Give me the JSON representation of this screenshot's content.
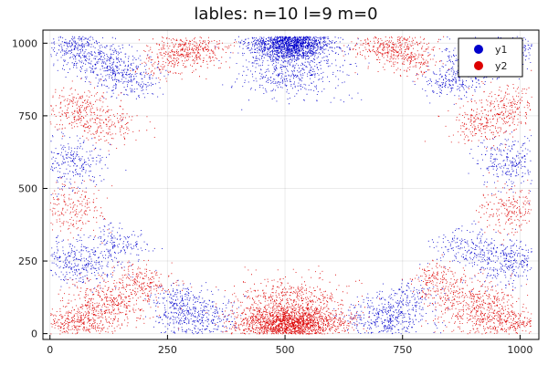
{
  "chart_data": {
    "type": "scatter",
    "title": "lables: n=10 l=9 m=0",
    "xlabel": "",
    "ylabel": "",
    "xlim": [
      -15,
      1040
    ],
    "ylim": [
      -20,
      1045
    ],
    "x_ticks": [
      0,
      250,
      500,
      750,
      1000
    ],
    "y_ticks": [
      0,
      250,
      500,
      750,
      1000
    ],
    "grid": true,
    "legend_position": "top-right",
    "series": [
      {
        "name": "y1",
        "color": "#0000cc",
        "clusters": [
          {
            "cx": 512,
            "cy": 1000,
            "sx": 42,
            "sy": 28,
            "n": 1800
          },
          {
            "cx": 512,
            "cy": 900,
            "sx": 55,
            "sy": 45,
            "n": 450
          },
          {
            "cx": 50,
            "cy": 990,
            "sx": 35,
            "sy": 28,
            "n": 260
          },
          {
            "cx": 115,
            "cy": 935,
            "sx": 40,
            "sy": 32,
            "n": 320
          },
          {
            "cx": 170,
            "cy": 870,
            "sx": 30,
            "sy": 28,
            "n": 200
          },
          {
            "cx": 975,
            "cy": 990,
            "sx": 35,
            "sy": 28,
            "n": 260
          },
          {
            "cx": 910,
            "cy": 935,
            "sx": 40,
            "sy": 32,
            "n": 320
          },
          {
            "cx": 855,
            "cy": 870,
            "sx": 30,
            "sy": 28,
            "n": 200
          },
          {
            "cx": 45,
            "cy": 590,
            "sx": 35,
            "sy": 45,
            "n": 260
          },
          {
            "cx": 980,
            "cy": 590,
            "sx": 35,
            "sy": 45,
            "n": 260
          },
          {
            "cx": 60,
            "cy": 250,
            "sx": 40,
            "sy": 40,
            "n": 330
          },
          {
            "cx": 140,
            "cy": 305,
            "sx": 35,
            "sy": 30,
            "n": 170
          },
          {
            "cx": 965,
            "cy": 250,
            "sx": 40,
            "sy": 40,
            "n": 330
          },
          {
            "cx": 885,
            "cy": 305,
            "sx": 35,
            "sy": 30,
            "n": 170
          },
          {
            "cx": 310,
            "cy": 55,
            "sx": 42,
            "sy": 38,
            "n": 420
          },
          {
            "cx": 265,
            "cy": 125,
            "sx": 30,
            "sy": 30,
            "n": 120
          },
          {
            "cx": 715,
            "cy": 55,
            "sx": 42,
            "sy": 38,
            "n": 420
          },
          {
            "cx": 760,
            "cy": 125,
            "sx": 30,
            "sy": 30,
            "n": 120
          }
        ]
      },
      {
        "name": "y2",
        "color": "#dd0000",
        "clusters": [
          {
            "cx": 512,
            "cy": 35,
            "sx": 55,
            "sy": 30,
            "n": 1900
          },
          {
            "cx": 512,
            "cy": 120,
            "sx": 60,
            "sy": 40,
            "n": 450
          },
          {
            "cx": 60,
            "cy": 40,
            "sx": 45,
            "sy": 30,
            "n": 420
          },
          {
            "cx": 130,
            "cy": 110,
            "sx": 45,
            "sy": 40,
            "n": 380
          },
          {
            "cx": 200,
            "cy": 185,
            "sx": 30,
            "sy": 30,
            "n": 180
          },
          {
            "cx": 965,
            "cy": 40,
            "sx": 45,
            "sy": 30,
            "n": 420
          },
          {
            "cx": 895,
            "cy": 110,
            "sx": 45,
            "sy": 40,
            "n": 380
          },
          {
            "cx": 825,
            "cy": 185,
            "sx": 30,
            "sy": 30,
            "n": 180
          },
          {
            "cx": 45,
            "cy": 430,
            "sx": 35,
            "sy": 40,
            "n": 230
          },
          {
            "cx": 980,
            "cy": 430,
            "sx": 35,
            "sy": 40,
            "n": 230
          },
          {
            "cx": 55,
            "cy": 775,
            "sx": 38,
            "sy": 40,
            "n": 280
          },
          {
            "cx": 120,
            "cy": 715,
            "sx": 35,
            "sy": 30,
            "n": 150
          },
          {
            "cx": 970,
            "cy": 775,
            "sx": 38,
            "sy": 40,
            "n": 280
          },
          {
            "cx": 905,
            "cy": 715,
            "sx": 35,
            "sy": 30,
            "n": 150
          },
          {
            "cx": 300,
            "cy": 985,
            "sx": 40,
            "sy": 30,
            "n": 380
          },
          {
            "cx": 250,
            "cy": 930,
            "sx": 30,
            "sy": 25,
            "n": 110
          },
          {
            "cx": 725,
            "cy": 985,
            "sx": 40,
            "sy": 30,
            "n": 380
          },
          {
            "cx": 775,
            "cy": 930,
            "sx": 30,
            "sy": 25,
            "n": 110
          }
        ]
      }
    ]
  }
}
